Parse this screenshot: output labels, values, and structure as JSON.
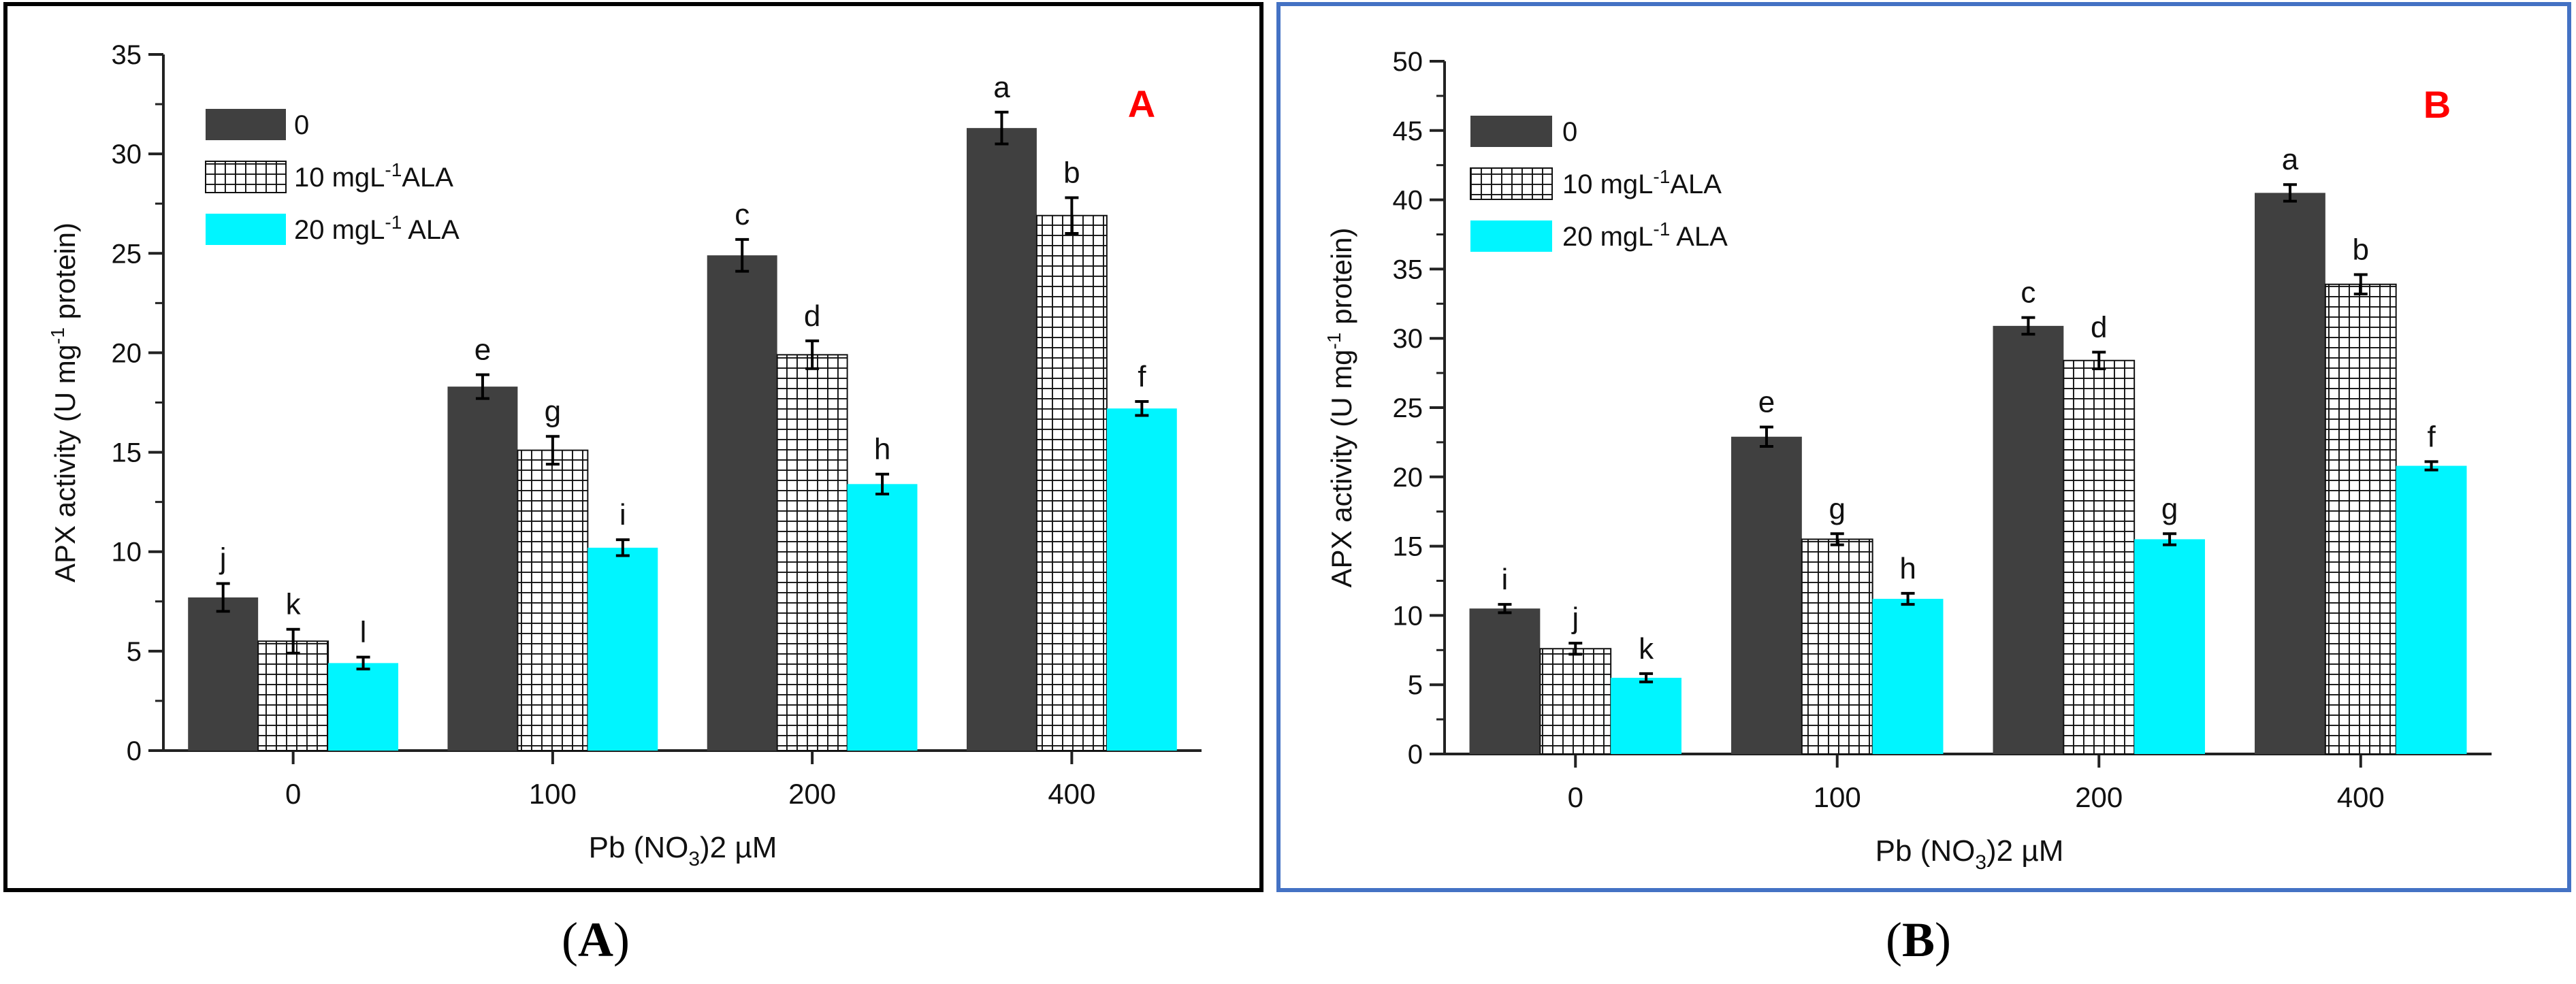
{
  "chart_data": [
    {
      "id": "A",
      "type": "bar",
      "panel_letter": "A",
      "caption": "A",
      "categories": [
        "0",
        "100",
        "200",
        "400"
      ],
      "ylabel": "APX activity (U mg-1 protein)",
      "xlabel": "Pb (NO3)2 µM",
      "ylim": [
        0,
        35
      ],
      "ytick_step": 5,
      "yticks": [
        "0",
        "5",
        "10",
        "15",
        "20",
        "25",
        "30",
        "35"
      ],
      "legend_position": "top-left",
      "series": [
        {
          "name": "0",
          "legend": {
            "pre": "0",
            "sup": "",
            "post": ""
          },
          "pattern": "solid",
          "color": "#404040",
          "values": [
            7.7,
            18.3,
            24.9,
            31.3
          ],
          "errors": [
            0.7,
            0.6,
            0.8,
            0.8
          ],
          "letters": [
            "j",
            "e",
            "c",
            "a"
          ]
        },
        {
          "name": "10 mgL-1ALA",
          "legend": {
            "pre": "10 mgL",
            "sup": "-1",
            "post": "ALA"
          },
          "pattern": "grid",
          "color": "#ffffff",
          "values": [
            5.5,
            15.1,
            19.9,
            26.9
          ],
          "errors": [
            0.6,
            0.7,
            0.7,
            0.9
          ],
          "letters": [
            "k",
            "g",
            "d",
            "b"
          ]
        },
        {
          "name": "20 mgL-1 ALA",
          "legend": {
            "pre": "20 mgL",
            "sup": "-1",
            "post": " ALA"
          },
          "pattern": "solid",
          "color": "#00f5ff",
          "values": [
            4.4,
            10.2,
            13.4,
            17.2
          ],
          "errors": [
            0.3,
            0.4,
            0.5,
            0.35
          ],
          "letters": [
            "l",
            "i",
            "h",
            "f"
          ]
        }
      ]
    },
    {
      "id": "B",
      "type": "bar",
      "panel_letter": "B",
      "caption": "B",
      "categories": [
        "0",
        "100",
        "200",
        "400"
      ],
      "ylabel": "APX activity (U mg-1 protein)",
      "xlabel": "Pb (NO3)2 µM",
      "ylim": [
        0,
        50
      ],
      "ytick_step": 5,
      "yticks": [
        "0",
        "5",
        "10",
        "15",
        "20",
        "25",
        "30",
        "35",
        "40",
        "45",
        "50"
      ],
      "legend_position": "top-left",
      "series": [
        {
          "name": "0",
          "legend": {
            "pre": "0",
            "sup": "",
            "post": ""
          },
          "pattern": "solid",
          "color": "#404040",
          "values": [
            10.5,
            22.9,
            30.9,
            40.5
          ],
          "errors": [
            0.3,
            0.7,
            0.6,
            0.6
          ],
          "letters": [
            "i",
            "e",
            "c",
            "a"
          ]
        },
        {
          "name": "10 mgL-1ALA",
          "legend": {
            "pre": "10 mgL",
            "sup": "-1",
            "post": "ALA"
          },
          "pattern": "grid",
          "color": "#ffffff",
          "values": [
            7.6,
            15.5,
            28.4,
            33.9
          ],
          "errors": [
            0.4,
            0.4,
            0.6,
            0.7
          ],
          "letters": [
            "j",
            "g",
            "d",
            "b"
          ]
        },
        {
          "name": "20 mgL-1 ALA",
          "legend": {
            "pre": "20 mgL",
            "sup": "-1",
            "post": " ALA"
          },
          "pattern": "solid",
          "color": "#00f5ff",
          "values": [
            5.5,
            11.2,
            15.5,
            20.8
          ],
          "errors": [
            0.3,
            0.4,
            0.4,
            0.3
          ],
          "letters": [
            "k",
            "h",
            "g",
            "f"
          ]
        }
      ]
    }
  ],
  "colors": {
    "panel_letter": "#ff0000",
    "frame_b": "#4472c4",
    "frame_a": "#000000",
    "dark_bar": "#404040",
    "cyan_bar": "#00f5ff"
  }
}
